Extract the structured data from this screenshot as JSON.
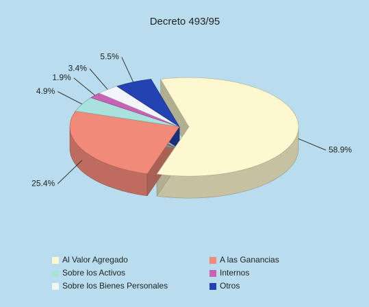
{
  "chart_data": {
    "type": "pie",
    "title": "Decreto 493/95",
    "categories": [
      "Al Valor Agregado",
      "A las Ganancias",
      "Sobre los Activos",
      "Internos",
      "Sobre los Bienes Personales",
      "Otros"
    ],
    "values": [
      58.9,
      25.4,
      4.9,
      1.9,
      3.4,
      5.5
    ],
    "value_labels": [
      "58.9%",
      "25.4%",
      "4.9%",
      "1.9%",
      "3.4%",
      "5.5%"
    ],
    "colors": [
      "#fdf8cf",
      "#f28a7a",
      "#a9e2dc",
      "#c862b4",
      "#f2f6fa",
      "#2443b2"
    ],
    "legend": "bottom"
  }
}
